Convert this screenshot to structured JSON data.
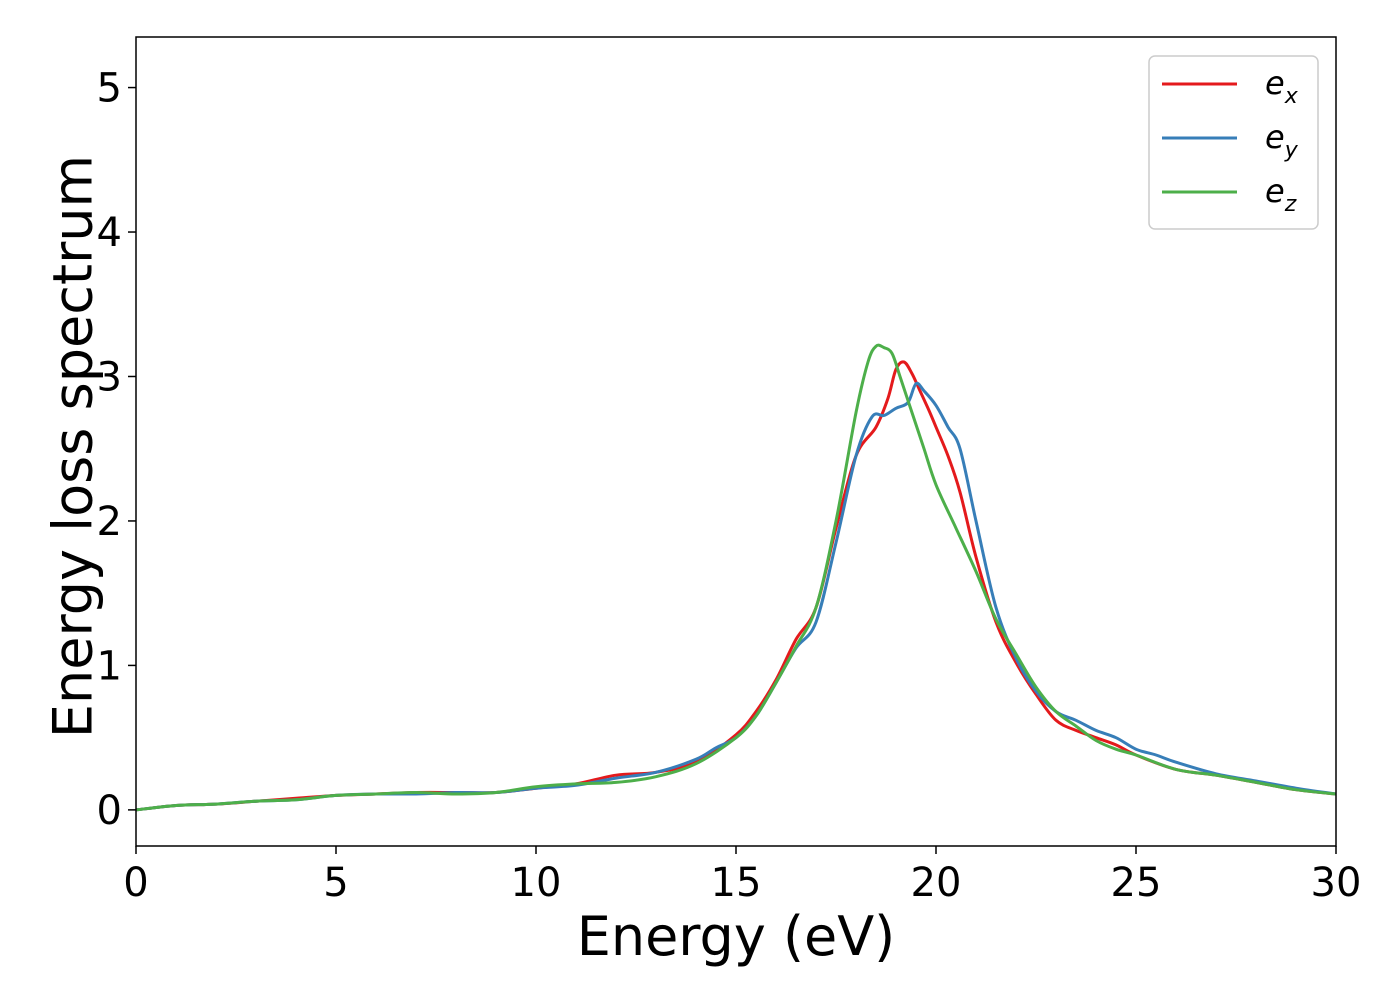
{
  "chart_data": {
    "type": "line",
    "title": "",
    "xlabel": "Energy (eV)",
    "ylabel": "Energy loss spectrum",
    "xlim": [
      0,
      30
    ],
    "ylim": [
      -0.25,
      5.35
    ],
    "xticks": [
      0,
      5,
      10,
      15,
      20,
      25,
      30
    ],
    "yticks": [
      0,
      1,
      2,
      3,
      4,
      5
    ],
    "grid": false,
    "legend_position": "top-right",
    "series": [
      {
        "name": "e",
        "subscript": "x",
        "color": "#e41a1c",
        "x": [
          0,
          1,
          2,
          3,
          4,
          5,
          6,
          7,
          8,
          9,
          10,
          11,
          12,
          13,
          14,
          15,
          15.5,
          16,
          16.5,
          17,
          17.5,
          18,
          18.5,
          18.8,
          19.0,
          19.2,
          19.4,
          19.6,
          19.8,
          20.0,
          20.3,
          20.6,
          21,
          21.5,
          22,
          22.5,
          23,
          23.5,
          24,
          24.5,
          25,
          26,
          27,
          28,
          29,
          30
        ],
        "values": [
          0.0,
          0.03,
          0.04,
          0.06,
          0.08,
          0.1,
          0.11,
          0.12,
          0.12,
          0.12,
          0.15,
          0.18,
          0.24,
          0.26,
          0.33,
          0.52,
          0.68,
          0.9,
          1.18,
          1.4,
          1.95,
          2.45,
          2.65,
          2.85,
          3.05,
          3.1,
          3.02,
          2.9,
          2.78,
          2.65,
          2.45,
          2.2,
          1.75,
          1.3,
          1.02,
          0.8,
          0.62,
          0.55,
          0.5,
          0.45,
          0.38,
          0.28,
          0.24,
          0.19,
          0.14,
          0.11
        ]
      },
      {
        "name": "e",
        "subscript": "y",
        "color": "#377eb8",
        "x": [
          0,
          1,
          2,
          3,
          4,
          5,
          6,
          7,
          8,
          9,
          10,
          11,
          12,
          13,
          14,
          14.5,
          15,
          15.5,
          16,
          16.5,
          17,
          17.5,
          18,
          18.4,
          18.7,
          19.0,
          19.3,
          19.5,
          19.7,
          20.0,
          20.3,
          20.6,
          21,
          21.5,
          22,
          22.5,
          23,
          23.5,
          24,
          24.5,
          25,
          25.5,
          26,
          27,
          28,
          29,
          30
        ],
        "values": [
          0.0,
          0.03,
          0.04,
          0.06,
          0.07,
          0.1,
          0.11,
          0.11,
          0.12,
          0.12,
          0.15,
          0.17,
          0.22,
          0.26,
          0.35,
          0.43,
          0.5,
          0.65,
          0.88,
          1.12,
          1.3,
          1.85,
          2.45,
          2.72,
          2.73,
          2.78,
          2.82,
          2.95,
          2.9,
          2.8,
          2.65,
          2.5,
          2.0,
          1.4,
          1.05,
          0.82,
          0.68,
          0.62,
          0.55,
          0.5,
          0.42,
          0.38,
          0.33,
          0.25,
          0.2,
          0.15,
          0.11
        ]
      },
      {
        "name": "e",
        "subscript": "z",
        "color": "#4daf4a",
        "x": [
          0,
          1,
          2,
          3,
          4,
          5,
          6,
          7,
          8,
          9,
          10,
          11,
          12,
          13,
          14,
          15,
          15.5,
          16,
          16.5,
          17,
          17.5,
          18,
          18.3,
          18.5,
          18.7,
          18.9,
          19.1,
          19.4,
          19.7,
          20.0,
          20.5,
          21,
          21.5,
          22,
          22.5,
          23,
          23.5,
          24,
          24.5,
          25,
          26,
          27,
          28,
          29,
          30
        ],
        "values": [
          0.0,
          0.03,
          0.04,
          0.06,
          0.07,
          0.1,
          0.11,
          0.12,
          0.11,
          0.12,
          0.16,
          0.18,
          0.19,
          0.23,
          0.32,
          0.5,
          0.65,
          0.88,
          1.13,
          1.4,
          2.0,
          2.75,
          3.1,
          3.21,
          3.2,
          3.16,
          3.0,
          2.75,
          2.5,
          2.25,
          1.95,
          1.65,
          1.32,
          1.08,
          0.85,
          0.68,
          0.58,
          0.48,
          0.42,
          0.38,
          0.28,
          0.24,
          0.19,
          0.14,
          0.11
        ]
      }
    ]
  }
}
